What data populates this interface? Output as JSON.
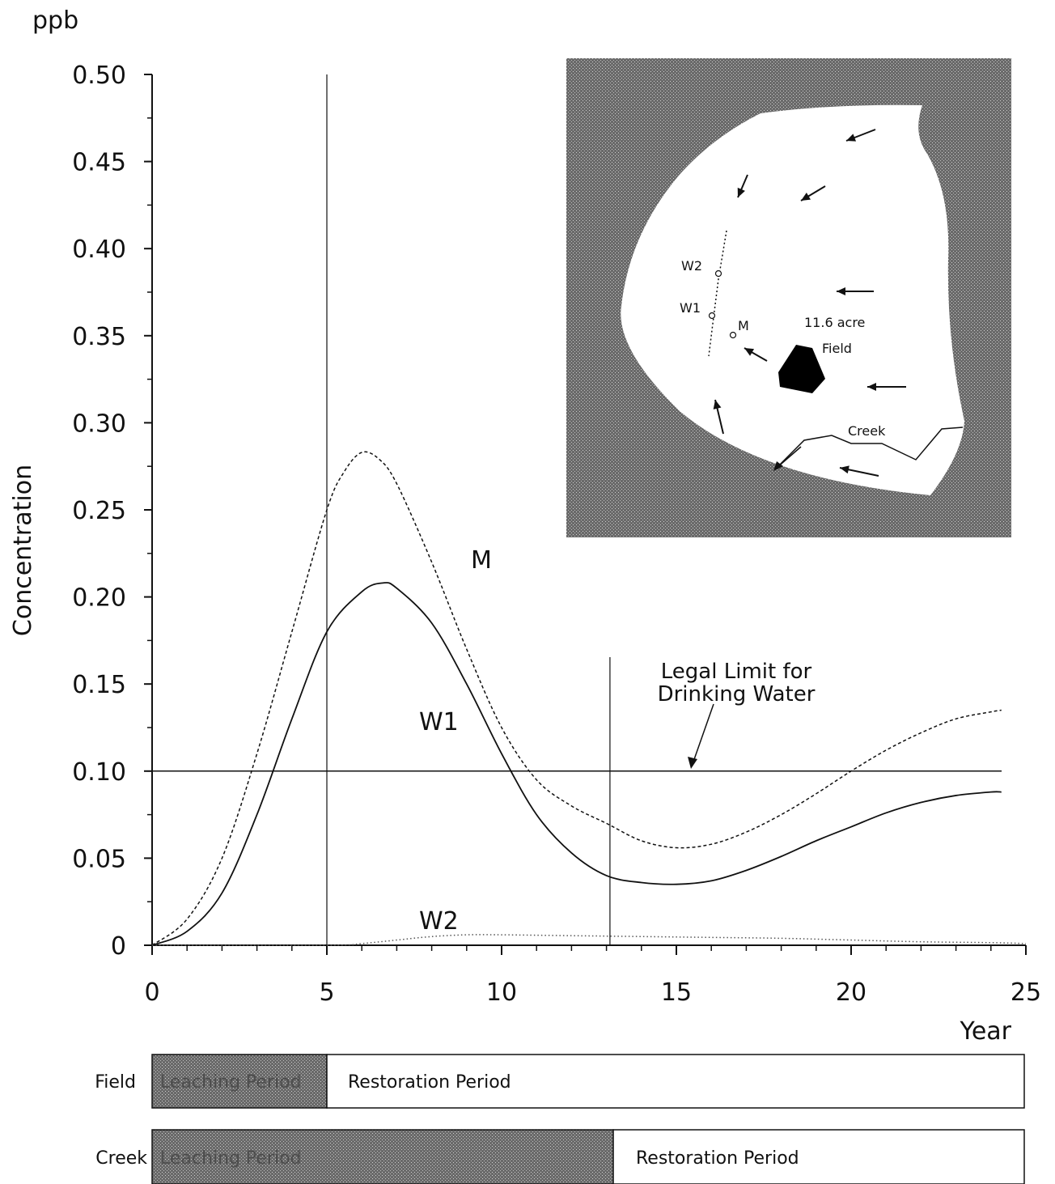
{
  "chart_data": {
    "type": "line",
    "ylabel": "Concentration",
    "yunit": "ppb",
    "xlabel": "Year",
    "xlim": [
      0,
      25
    ],
    "ylim": [
      0,
      0.5
    ],
    "xticks": [
      "0",
      "5",
      "10",
      "15",
      "20",
      "25"
    ],
    "yticks": [
      "0",
      "0.05",
      "0.10",
      "0.15",
      "0.20",
      "0.25",
      "0.30",
      "0.35",
      "0.40",
      "0.45",
      "0.50"
    ],
    "grid": false,
    "series": [
      {
        "name": "M",
        "style": "dashed",
        "x": [
          0,
          1,
          2,
          3,
          4,
          5,
          5.5,
          6,
          6.5,
          7,
          8,
          9,
          10,
          11,
          12,
          13,
          14,
          15,
          16,
          17,
          18,
          19,
          20,
          21,
          22,
          23,
          24,
          24.3
        ],
        "y": [
          0,
          0.015,
          0.05,
          0.11,
          0.18,
          0.25,
          0.272,
          0.283,
          0.279,
          0.265,
          0.22,
          0.17,
          0.125,
          0.095,
          0.08,
          0.07,
          0.06,
          0.056,
          0.058,
          0.065,
          0.075,
          0.087,
          0.1,
          0.112,
          0.122,
          0.13,
          0.134,
          0.135
        ]
      },
      {
        "name": "W1",
        "style": "solid",
        "x": [
          0,
          1,
          2,
          3,
          4,
          5,
          6,
          6.6,
          7,
          8,
          9,
          10,
          11,
          12,
          13,
          14,
          15,
          16,
          17,
          18,
          19,
          20,
          21,
          22,
          23,
          24,
          24.3
        ],
        "y": [
          0,
          0.008,
          0.03,
          0.075,
          0.13,
          0.18,
          0.203,
          0.208,
          0.205,
          0.185,
          0.15,
          0.11,
          0.075,
          0.053,
          0.04,
          0.036,
          0.035,
          0.037,
          0.043,
          0.051,
          0.06,
          0.068,
          0.076,
          0.082,
          0.086,
          0.088,
          0.088
        ]
      },
      {
        "name": "W2",
        "style": "dotted",
        "x": [
          0,
          5,
          6,
          7,
          8,
          9,
          10,
          12,
          14,
          16,
          18,
          20,
          22,
          24,
          25
        ],
        "y": [
          0,
          0,
          0.001,
          0.003,
          0.005,
          0.006,
          0.006,
          0.0055,
          0.005,
          0.0045,
          0.004,
          0.003,
          0.002,
          0.0015,
          0.001
        ]
      }
    ],
    "reference_lines": {
      "legal_limit_y": 0.1,
      "vertical_x": [
        5,
        13.1
      ]
    },
    "annotations": {
      "legal_limit": [
        "Legal Limit for",
        "Drinking Water"
      ]
    },
    "periods": [
      {
        "row_label": "Field",
        "leaching_label": "Leaching Period",
        "restoration_label": "Restoration Period",
        "leaching_end_x": 5
      },
      {
        "row_label": "Creek",
        "leaching_label": "Leaching Period",
        "restoration_label": "Restoration Period",
        "leaching_end_x": 13.1
      }
    ],
    "inset_map": {
      "wells": [
        "W2",
        "W1",
        "M"
      ],
      "area_label": "11.6 acre",
      "field_label": "Field",
      "creek_label": "Creek"
    }
  }
}
